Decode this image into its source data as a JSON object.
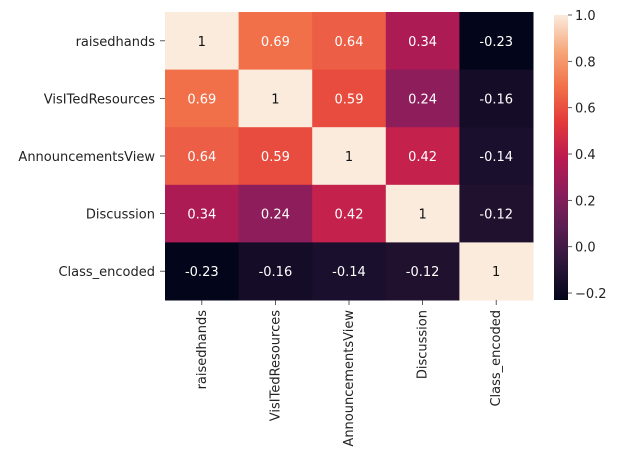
{
  "chart_data": {
    "type": "heatmap",
    "title": "",
    "xlabel": "",
    "ylabel": "",
    "rows": [
      "raisedhands",
      "VisITedResources",
      "AnnouncementsView",
      "Discussion",
      "Class_encoded"
    ],
    "columns": [
      "raisedhands",
      "VisITedResources",
      "AnnouncementsView",
      "Discussion",
      "Class_encoded"
    ],
    "values": [
      [
        1,
        0.69,
        0.64,
        0.34,
        -0.23
      ],
      [
        0.69,
        1,
        0.59,
        0.24,
        -0.16
      ],
      [
        0.64,
        0.59,
        1,
        0.42,
        -0.14
      ],
      [
        0.34,
        0.24,
        0.42,
        1,
        -0.12
      ],
      [
        -0.23,
        -0.16,
        -0.14,
        -0.12,
        1
      ]
    ],
    "value_labels": [
      [
        "1",
        "0.69",
        "0.64",
        "0.34",
        "-0.23"
      ],
      [
        "0.69",
        "1",
        "0.59",
        "0.24",
        "-0.16"
      ],
      [
        "0.64",
        "0.59",
        "1",
        "0.42",
        "-0.14"
      ],
      [
        "0.34",
        "0.24",
        "0.42",
        "1",
        "-0.12"
      ],
      [
        "-0.23",
        "-0.16",
        "-0.14",
        "-0.12",
        "1"
      ]
    ],
    "colormap": "rocket",
    "colorbar": {
      "range": [
        -0.23,
        1.0
      ],
      "ticks": [
        1.0,
        0.8,
        0.6,
        0.4,
        0.2,
        0.0,
        -0.2
      ],
      "tick_labels": [
        "1.0",
        "0.8",
        "0.6",
        "0.4",
        "0.2",
        "0.0",
        "−0.2"
      ]
    },
    "annotations": true,
    "grid": false
  }
}
